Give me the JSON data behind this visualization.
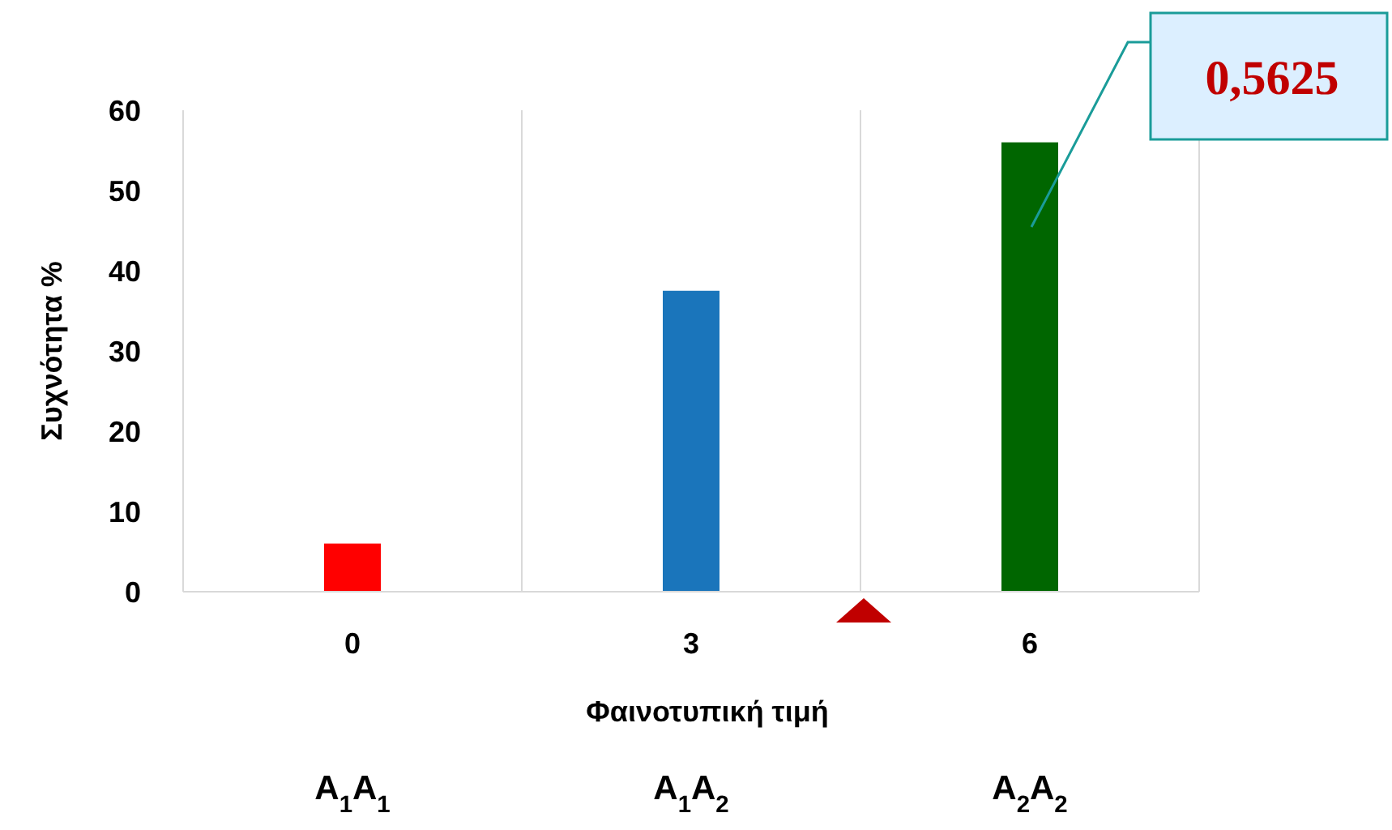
{
  "chart_data": {
    "type": "bar",
    "xlabel": "Φαινοτυπική τιμή",
    "ylabel": "Συχνότητα %",
    "categories": [
      "0",
      "3",
      "6"
    ],
    "values": [
      6,
      37.5,
      56
    ],
    "colors": [
      "#ff0000",
      "#1a75bb",
      "#006600"
    ],
    "ylim": [
      0,
      60
    ],
    "yticks": [
      0,
      10,
      20,
      30,
      40,
      50,
      60
    ],
    "grid": "x",
    "annotations": [
      "0,5625",
      "A$_{1}$A$_{1}$",
      "A$_{1}$A$_{2}$",
      "A$_{2}$A$_{2}$"
    ]
  }
}
